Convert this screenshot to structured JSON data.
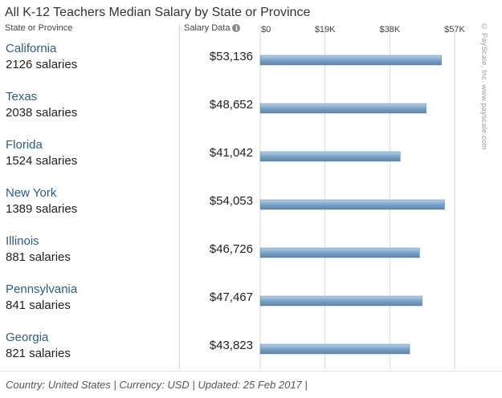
{
  "header": {
    "title": "All K-12 Teachers Median Salary by State or Province",
    "state_col": "State or Province",
    "salary_col": "Salary Data",
    "info_icon": "info-icon"
  },
  "footer": {
    "text": "Country: United States | Currency: USD | Updated: 25 Feb 2017 |"
  },
  "watermark": "© PayScale, Inc. www.payscale.com",
  "colors": {
    "state_name": "#2b5d88",
    "bar": "#7ea6c9",
    "bar_highlight": "#b9d1e6",
    "bar_shadow": "#5b84a9"
  },
  "rows": [
    {
      "state": "California",
      "count": "2126 salaries",
      "salary": "$53,136"
    },
    {
      "state": "Texas",
      "count": "2038 salaries",
      "salary": "$48,652"
    },
    {
      "state": "Florida",
      "count": "1524 salaries",
      "salary": "$41,042"
    },
    {
      "state": "New York",
      "count": "1389 salaries",
      "salary": "$54,053"
    },
    {
      "state": "Illinois",
      "count": "881 salaries",
      "salary": "$46,726"
    },
    {
      "state": "Pennsylvania",
      "count": "841 salaries",
      "salary": "$47,467"
    },
    {
      "state": "Georgia",
      "count": "821 salaries",
      "salary": "$43,823"
    }
  ],
  "chart_data": {
    "type": "bar",
    "orientation": "horizontal",
    "title": "All K-12 Teachers Median Salary by State or Province",
    "categories": [
      "California",
      "Texas",
      "Florida",
      "New York",
      "Illinois",
      "Pennsylvania",
      "Georgia"
    ],
    "values": [
      53136,
      48652,
      41042,
      54053,
      46726,
      47467,
      43823
    ],
    "xlim": [
      0,
      57000
    ],
    "xticks": [
      {
        "value": 0,
        "label": "$0"
      },
      {
        "value": 19000,
        "label": "$19K"
      },
      {
        "value": 38000,
        "label": "$38K"
      },
      {
        "value": 57000,
        "label": "$57K"
      }
    ],
    "grid": true,
    "legend": "none"
  }
}
